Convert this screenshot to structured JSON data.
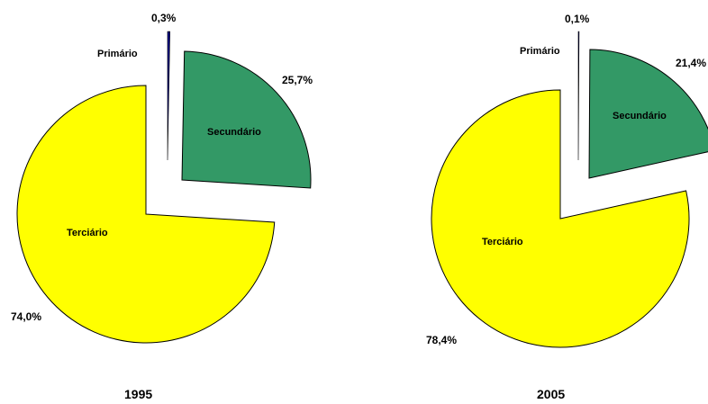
{
  "chart_data": [
    {
      "type": "pie",
      "title": "1995",
      "categories": [
        "Primário",
        "Secundário",
        "Terciário"
      ],
      "values": [
        0.3,
        25.7,
        74.0
      ],
      "value_labels": [
        "0,3%",
        "25,7%",
        "74,0%"
      ],
      "colors": [
        "#000080",
        "#339966",
        "#ffff00"
      ],
      "exploded": true
    },
    {
      "type": "pie",
      "title": "2005",
      "categories": [
        "Primário",
        "Secundário",
        "Terciário"
      ],
      "values": [
        0.1,
        21.4,
        78.4
      ],
      "value_labels": [
        "0,1%",
        "21,4%",
        "78,4%"
      ],
      "colors": [
        "#000080",
        "#339966",
        "#ffff00"
      ],
      "exploded": true
    }
  ]
}
